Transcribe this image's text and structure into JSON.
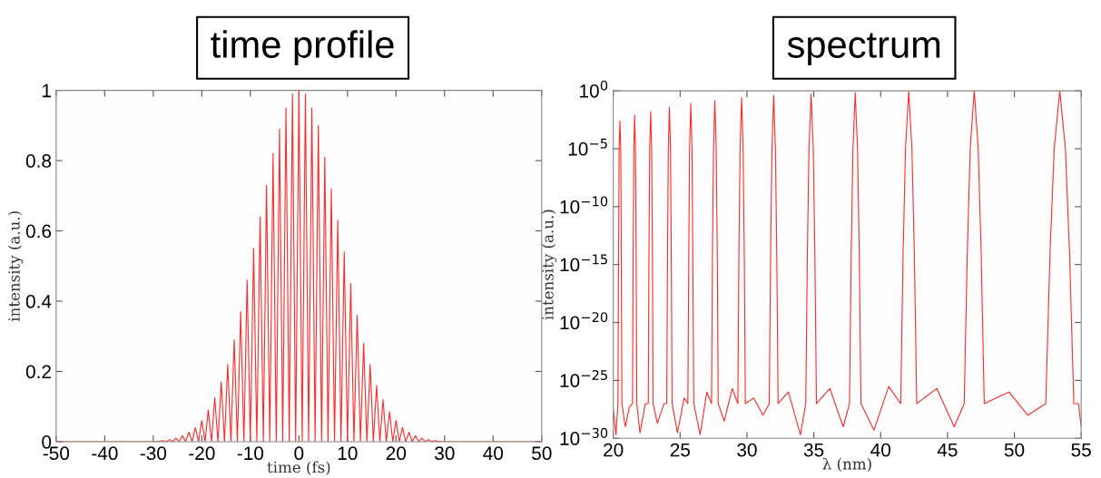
{
  "chart_data": [
    {
      "type": "line",
      "title": "time profile",
      "xlabel": "time (fs)",
      "ylabel": "intensity (a.u.)",
      "x": [
        -50,
        -29.33,
        -28,
        -27.33,
        -26.67,
        -26,
        -25.33,
        -24.67,
        -24,
        -23.33,
        -22.67,
        -22,
        -21.33,
        -20.67,
        -20,
        -19.33,
        -18.67,
        -18,
        -17.33,
        -16.67,
        -16,
        -15.33,
        -14.67,
        -14,
        -13.33,
        -12.67,
        -12,
        -11.33,
        -10.67,
        -10,
        -9.33,
        -8.67,
        -8,
        -7.33,
        -6.67,
        -6,
        -5.33,
        -4.67,
        -4,
        -3.33,
        -2.67,
        -2,
        -1.33,
        -0.67,
        0,
        0.67,
        1.33,
        2,
        2.67,
        3.33,
        4,
        4.67,
        5.33,
        6,
        6.67,
        7.33,
        8,
        8.67,
        9.33,
        10,
        10.67,
        11.33,
        12,
        12.67,
        13.33,
        14,
        14.67,
        15.33,
        16,
        16.67,
        17.33,
        18,
        18.67,
        19.33,
        20,
        20.67,
        21.33,
        22,
        22.67,
        23.33,
        24,
        24.67,
        25.33,
        26,
        26.67,
        27.33,
        28,
        29.33,
        50
      ],
      "series": [
        {
          "color": "#ff2a2a",
          "values": [
            0,
            0,
            0.003,
            0,
            0.006,
            0,
            0.01,
            0,
            0.017,
            0,
            0.027,
            0,
            0.04,
            0,
            0.06,
            0,
            0.09,
            0,
            0.125,
            0,
            0.17,
            0,
            0.22,
            0,
            0.29,
            0,
            0.37,
            0,
            0.46,
            0,
            0.55,
            0,
            0.64,
            0,
            0.73,
            0,
            0.82,
            0,
            0.89,
            0,
            0.95,
            0,
            0.99,
            0,
            1.0,
            0,
            0.99,
            0,
            0.95,
            0,
            0.9,
            0,
            0.81,
            0,
            0.72,
            0,
            0.63,
            0,
            0.54,
            0,
            0.45,
            0,
            0.36,
            0,
            0.28,
            0,
            0.22,
            0,
            0.16,
            0,
            0.12,
            0,
            0.085,
            0,
            0.06,
            0,
            0.04,
            0,
            0.027,
            0,
            0.017,
            0,
            0.01,
            0,
            0.006,
            0,
            0.003,
            0,
            0
          ]
        }
      ],
      "xlim": [
        -50,
        50
      ],
      "ylim": [
        0,
        1
      ],
      "xticks": [
        -50,
        -40,
        -30,
        -20,
        -10,
        0,
        10,
        20,
        30,
        40,
        50
      ],
      "yticks": [
        0,
        0.2,
        0.4,
        0.6,
        0.8,
        1
      ]
    },
    {
      "type": "line",
      "title": "spectrum",
      "xlabel": "λ (nm)",
      "ylabel": "intensity (a.u.)",
      "log": "y",
      "x": [
        20,
        20.2,
        20.35,
        20.4,
        20.44,
        20.5,
        20.56,
        20.6,
        20.65,
        20.9,
        21.2,
        21.44,
        21.49,
        21.54,
        21.6,
        21.66,
        21.71,
        21.76,
        22.0,
        22.4,
        22.62,
        22.67,
        22.73,
        22.8,
        22.87,
        22.93,
        22.98,
        23.3,
        23.8,
        24.0,
        24.06,
        24.12,
        24.2,
        24.28,
        24.34,
        24.4,
        24.8,
        25.3,
        25.58,
        25.65,
        25.71,
        25.8,
        25.89,
        25.95,
        26.02,
        26.5,
        27.0,
        27.35,
        27.42,
        27.5,
        27.6,
        27.7,
        27.78,
        27.85,
        28.3,
        28.9,
        29.32,
        29.4,
        29.49,
        29.6,
        29.71,
        29.8,
        29.88,
        30.5,
        31.2,
        31.67,
        31.77,
        31.87,
        32.0,
        32.13,
        32.23,
        32.33,
        33.1,
        34.0,
        34.4,
        34.52,
        34.64,
        34.8,
        34.96,
        35.08,
        35.2,
        36.2,
        37.2,
        37.67,
        37.8,
        37.93,
        38.1,
        38.27,
        38.4,
        38.53,
        39.5,
        40.6,
        41.5,
        41.68,
        41.86,
        42.1,
        42.34,
        42.52,
        42.7,
        44.2,
        45.5,
        46.25,
        46.48,
        46.7,
        47.0,
        47.3,
        47.52,
        47.75,
        49.6,
        51.0,
        52.35,
        52.67,
        52.98,
        53.4,
        53.82,
        54.13,
        54.45,
        54.8,
        55
      ],
      "series": [
        {
          "color": "#ff2a2a",
          "values": [
            3e-28,
            2e-30,
            1e-27,
            1e-14,
            1e-05,
            0.0025,
            1e-05,
            1e-14,
            1e-27,
            1e-29,
            5e-28,
            1e-27,
            1e-14,
            1e-05,
            0.008,
            1e-05,
            1e-14,
            1e-27,
            3e-30,
            1e-27,
            1e-27,
            1e-14,
            1e-05,
            0.016,
            1e-05,
            1e-14,
            1e-27,
            2e-29,
            1e-27,
            1e-27,
            1e-14,
            1e-05,
            0.04,
            1e-05,
            1e-14,
            1e-27,
            3e-30,
            3e-27,
            1e-27,
            1e-14,
            1e-05,
            0.08,
            1e-05,
            1e-14,
            1e-27,
            2e-30,
            1e-26,
            1e-27,
            1e-14,
            1e-05,
            0.14,
            1e-05,
            1e-14,
            1e-27,
            3e-29,
            2e-26,
            1e-27,
            1e-14,
            1e-05,
            0.25,
            1e-05,
            1e-14,
            1e-27,
            3e-27,
            1e-28,
            1e-27,
            1e-14,
            1e-05,
            0.4,
            1e-05,
            1e-14,
            1e-27,
            1e-26,
            2e-30,
            1e-27,
            1e-14,
            1e-05,
            0.54,
            1e-05,
            1e-14,
            1e-27,
            2e-26,
            1e-29,
            1e-27,
            1e-14,
            1e-05,
            0.7,
            1e-05,
            1e-14,
            1e-27,
            5e-30,
            3e-26,
            1e-27,
            1e-14,
            1e-05,
            0.93,
            1e-05,
            1e-14,
            1e-27,
            2e-26,
            1e-29,
            1e-27,
            1e-14,
            1e-05,
            1.0,
            1e-05,
            1e-14,
            1e-27,
            1e-26,
            1e-28,
            1e-27,
            1e-14,
            1e-05,
            1.0,
            1e-05,
            1e-14,
            1e-27,
            1e-27,
            1e-29
          ]
        }
      ],
      "xlim": [
        20,
        55
      ],
      "ylim": [
        1e-30,
        1
      ],
      "xticks": [
        20,
        25,
        30,
        35,
        40,
        45,
        50,
        55
      ],
      "yticks": [
        {
          "value": 1e-30,
          "label": "10$^{−30}$"
        },
        {
          "value": 1e-25,
          "label": "10$^{−25}$"
        },
        {
          "value": 1e-20,
          "label": "10$^{−20}$"
        },
        {
          "value": 1e-15,
          "label": "10$^{−15}$"
        },
        {
          "value": 1e-10,
          "label": "10$^{−10}$"
        },
        {
          "value": 1e-05,
          "label": "10$^{−5}$"
        },
        {
          "value": 1,
          "label": "10$^{0}$"
        }
      ]
    }
  ]
}
